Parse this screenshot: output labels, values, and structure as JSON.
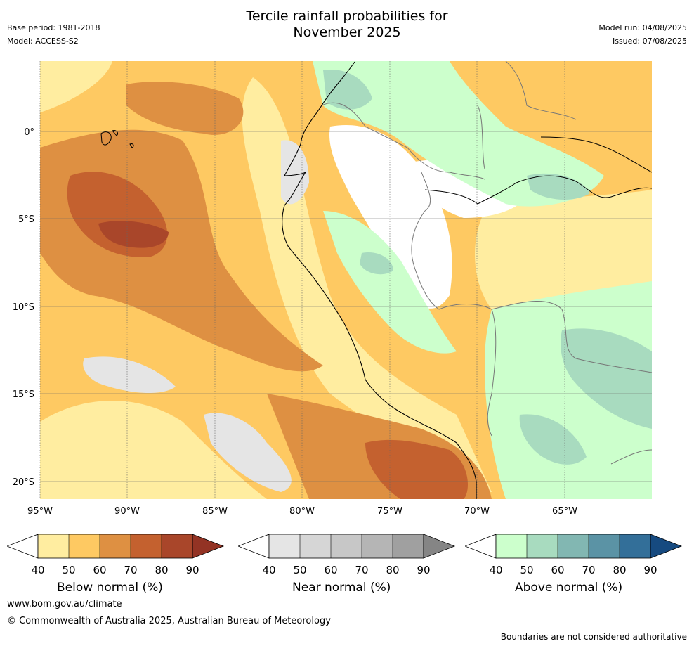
{
  "title_line1": "Tercile rainfall probabilities for",
  "title_line2": "November 2025",
  "meta_left": {
    "base_period": "Base period: 1981-2018",
    "model": "Model: ACCESS-S2"
  },
  "meta_right": {
    "model_run": "Model run: 04/08/2025",
    "issued": "Issued: 07/08/2025"
  },
  "map": {
    "lon_labels": [
      "95°W",
      "90°W",
      "85°W",
      "80°W",
      "75°W",
      "70°W",
      "65°W"
    ],
    "lat_labels": [
      "0°",
      "5°S",
      "10°S",
      "15°S",
      "20°S"
    ]
  },
  "legend": {
    "ticks": [
      "40",
      "50",
      "60",
      "70",
      "80",
      "90"
    ],
    "below": {
      "label": "Below normal (%)",
      "colors": [
        "#ffffff",
        "#ffeda0",
        "#fec962",
        "#de9042",
        "#c4612f",
        "#a9462a",
        "#933324"
      ]
    },
    "near": {
      "label": "Near normal (%)",
      "colors": [
        "#ffffff",
        "#e5e5e5",
        "#d6d6d6",
        "#c7c7c7",
        "#b5b5b5",
        "#a0a0a0",
        "#858585"
      ]
    },
    "above": {
      "label": "Above normal (%)",
      "colors": [
        "#ffffff",
        "#ccffcc",
        "#a8dbbf",
        "#82b7b2",
        "#5b93a5",
        "#336f99",
        "#164a80"
      ]
    }
  },
  "footer": {
    "url": "www.bom.gov.au/climate",
    "copyright": "© Commonwealth of Australia 2025, Australian Bureau of Meteorology",
    "note": "Boundaries are not considered authoritative"
  }
}
